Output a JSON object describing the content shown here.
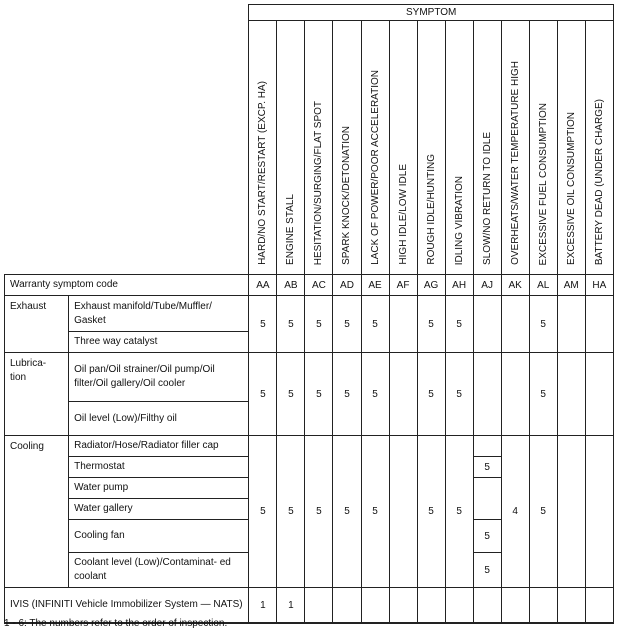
{
  "header": {
    "symptom_title": "SYMPTOM",
    "symptoms": [
      "HARD/NO START/RESTART (EXCP. HA)",
      "ENGINE STALL",
      "HESITATION/SURGING/FLAT SPOT",
      "SPARK KNOCK/DETONATION",
      "LACK OF POWER/POOR ACCELERATION",
      "HIGH IDLE/LOW IDLE",
      "ROUGH IDLE/HUNTING",
      "IDLING VIBRATION",
      "SLOW/NO RETURN TO IDLE",
      "OVERHEATS/WATER TEMPERATURE HIGH",
      "EXCESSIVE FUEL CONSUMPTION",
      "EXCESSIVE OIL CONSUMPTION",
      "BATTERY DEAD (UNDER CHARGE)"
    ]
  },
  "warranty": {
    "label": "Warranty symptom code",
    "codes": [
      "AA",
      "AB",
      "AC",
      "AD",
      "AE",
      "AF",
      "AG",
      "AH",
      "AJ",
      "AK",
      "AL",
      "AM",
      "HA"
    ]
  },
  "groups": {
    "exhaust": {
      "label": "Exhaust",
      "items": [
        "Exhaust manifold/Tube/Muffler/ Gasket",
        "Three way catalyst"
      ],
      "values": [
        "5",
        "5",
        "5",
        "5",
        "5",
        "",
        "5",
        "5",
        "",
        "",
        "5",
        "",
        ""
      ]
    },
    "lubrication": {
      "label": "Lubrica- tion",
      "items": [
        "Oil pan/Oil strainer/Oil pump/Oil filter/Oil gallery/Oil cooler",
        "Oil level (Low)/Filthy oil"
      ],
      "values": [
        "5",
        "5",
        "5",
        "5",
        "5",
        "",
        "5",
        "5",
        "",
        "",
        "5",
        "",
        ""
      ]
    },
    "cooling": {
      "label": "Cooling",
      "items": [
        "Radiator/Hose/Radiator filler cap",
        "Thermostat",
        "Water pump",
        "Water gallery",
        "Cooling fan",
        "Coolant level (Low)/Contaminat- ed coolant"
      ],
      "values": [
        "5",
        "5",
        "5",
        "5",
        "5",
        "",
        "5",
        "5",
        "",
        "4",
        "5",
        "",
        ""
      ],
      "slow_idle": {
        "radiator": "",
        "thermostat": "5",
        "pump_gallery": "",
        "fan": "5",
        "coolant": "5"
      }
    },
    "ivis": {
      "label": "IVIS (INFINITI Vehicle Immobilizer System — NATS)",
      "values": [
        "1",
        "1",
        "",
        "",
        "",
        "",
        "",
        "",
        "",
        "",
        "",
        "",
        ""
      ]
    }
  },
  "footnote": "1 - 6: The numbers refer to the order of inspection."
}
